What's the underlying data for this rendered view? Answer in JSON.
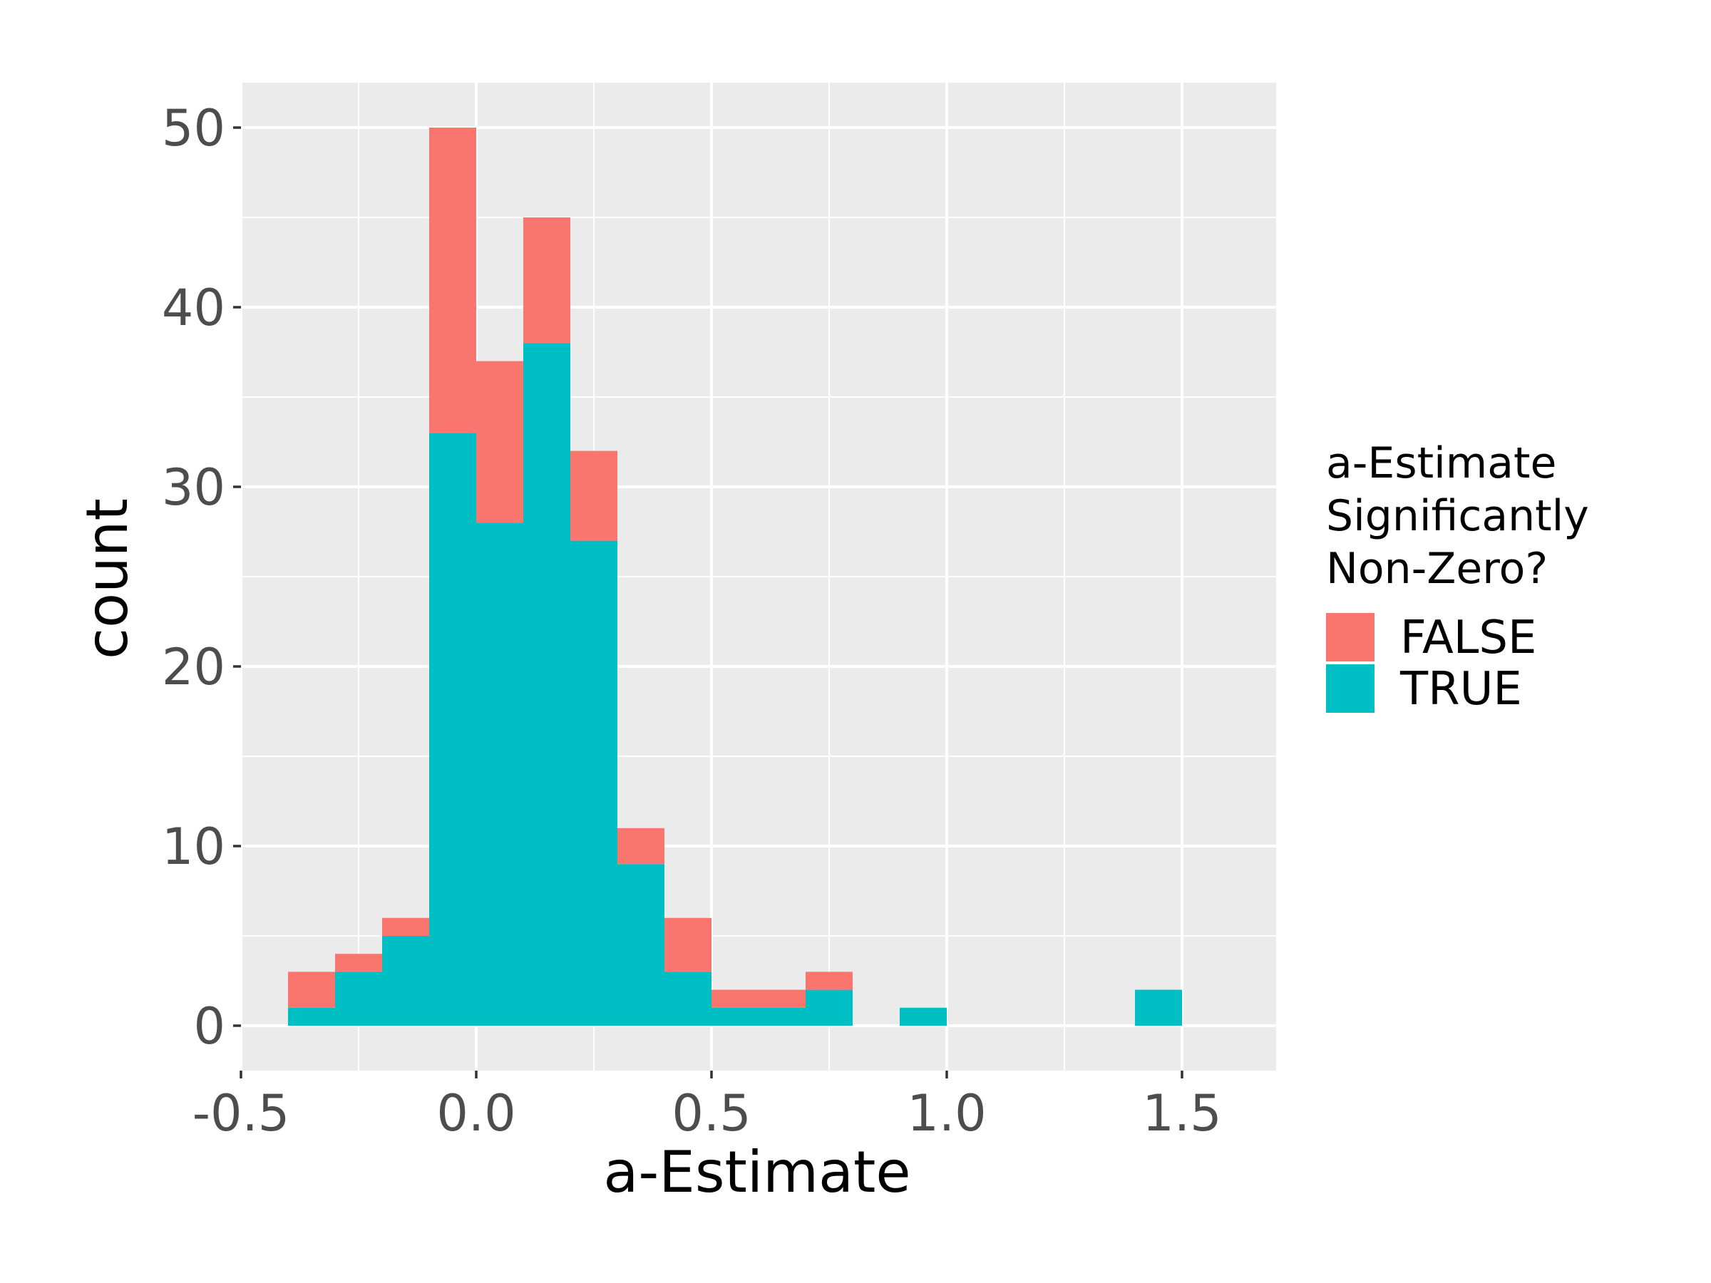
{
  "chart_data": {
    "type": "bar",
    "subtype": "stacked-histogram",
    "title": "",
    "xlabel": "a-Estimate",
    "ylabel": "count",
    "xlim": [
      -0.5,
      1.7
    ],
    "ylim": [
      -2.5,
      52.5
    ],
    "x_ticks": [
      -0.5,
      0.0,
      0.5,
      1.0,
      1.5
    ],
    "x_tick_labels": [
      "-0.5",
      "0.0",
      "0.5",
      "1.0",
      "1.5"
    ],
    "y_ticks": [
      0,
      10,
      20,
      30,
      40,
      50
    ],
    "y_tick_labels": [
      "0",
      "10",
      "20",
      "30",
      "40",
      "50"
    ],
    "grid": true,
    "legend": {
      "title_lines": [
        "a-Estimate",
        "Significantly",
        "Non-Zero?"
      ],
      "position": "right"
    },
    "bins": [
      {
        "x0": -0.4,
        "x1": -0.3
      },
      {
        "x0": -0.3,
        "x1": -0.2
      },
      {
        "x0": -0.2,
        "x1": -0.1
      },
      {
        "x0": -0.1,
        "x1": 0.0
      },
      {
        "x0": 0.0,
        "x1": 0.1
      },
      {
        "x0": 0.1,
        "x1": 0.2
      },
      {
        "x0": 0.2,
        "x1": 0.3
      },
      {
        "x0": 0.3,
        "x1": 0.4
      },
      {
        "x0": 0.4,
        "x1": 0.5
      },
      {
        "x0": 0.5,
        "x1": 0.6
      },
      {
        "x0": 0.6,
        "x1": 0.7
      },
      {
        "x0": 0.7,
        "x1": 0.8
      },
      {
        "x0": 0.8,
        "x1": 0.9
      },
      {
        "x0": 0.9,
        "x1": 1.0
      },
      {
        "x0": 1.0,
        "x1": 1.1
      },
      {
        "x0": 1.1,
        "x1": 1.2
      },
      {
        "x0": 1.2,
        "x1": 1.3
      },
      {
        "x0": 1.3,
        "x1": 1.4
      },
      {
        "x0": 1.4,
        "x1": 1.5
      }
    ],
    "series": [
      {
        "name": "TRUE",
        "color": "#00BFC4",
        "values": [
          1,
          3,
          5,
          33,
          28,
          38,
          27,
          9,
          3,
          1,
          1,
          2,
          0,
          1,
          0,
          0,
          0,
          0,
          2
        ]
      },
      {
        "name": "FALSE",
        "color": "#F8766D",
        "values": [
          2,
          1,
          1,
          17,
          9,
          7,
          5,
          2,
          3,
          1,
          1,
          1,
          0,
          0,
          0,
          0,
          0,
          0,
          0
        ]
      }
    ],
    "legend_order": [
      "FALSE",
      "TRUE"
    ],
    "colors": {
      "panel": "#EBEBEB",
      "grid": "#FFFFFF",
      "tick_text": "#4D4D4D"
    }
  }
}
